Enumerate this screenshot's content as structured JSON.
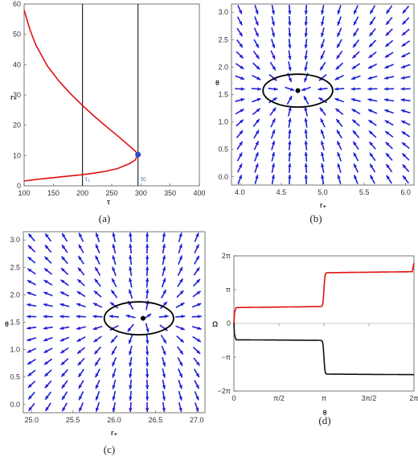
{
  "chart_data": [
    {
      "id": "a",
      "caption": "(a)",
      "type": "line",
      "xlabel": "τ",
      "ylabel": "r₊",
      "xlim": [
        100,
        400
      ],
      "ylim": [
        0,
        60
      ],
      "xticks": [
        100,
        150,
        200,
        250,
        300,
        350,
        400
      ],
      "yticks": [
        0,
        10,
        20,
        30,
        40,
        50,
        60
      ],
      "vlines": [
        {
          "x": 200,
          "label": "τ₁"
        },
        {
          "x": 295,
          "label": "τc"
        }
      ],
      "critical_point": {
        "x": 295,
        "y": 10.3
      },
      "series": [
        {
          "color": "#e01010",
          "points": [
            [
              100,
              58
            ],
            [
              110,
              51.5
            ],
            [
              120,
              46.5
            ],
            [
              140,
              39.5
            ],
            [
              160,
              34.5
            ],
            [
              180,
              30.3
            ],
            [
              200,
              26.5
            ],
            [
              220,
              23
            ],
            [
              240,
              19.7
            ],
            [
              260,
              16.5
            ],
            [
              280,
              13.2
            ],
            [
              290,
              11.5
            ],
            [
              295,
              10.3
            ],
            [
              290,
              8.5
            ],
            [
              280,
              7.3
            ],
            [
              260,
              5.7
            ],
            [
              240,
              4.8
            ],
            [
              220,
              4.2
            ],
            [
              200,
              3.7
            ],
            [
              180,
              3.3
            ],
            [
              160,
              2.9
            ],
            [
              140,
              2.5
            ],
            [
              120,
              2.1
            ],
            [
              100,
              1.6
            ]
          ]
        }
      ]
    },
    {
      "id": "b",
      "caption": "(b)",
      "type": "vector_field",
      "xlabel": "r₊",
      "ylabel": "θ",
      "xlim": [
        3.9,
        6.1
      ],
      "ylim": [
        -0.15,
        3.15
      ],
      "xticks": [
        "4.0",
        "4.5",
        "5.0",
        "5.5",
        "6.0"
      ],
      "yticks": [
        "0.0",
        "0.5",
        "1.0",
        "1.5",
        "2.0",
        "2.5",
        "3.0"
      ],
      "zero_point": {
        "x": 4.7,
        "y": 1.571
      },
      "orientation": "sink",
      "contour": {
        "cx": 4.7,
        "cy": 1.571,
        "rx": 0.42,
        "ry": 0.3
      },
      "color": "#1f1fd6"
    },
    {
      "id": "c",
      "caption": "(c)",
      "type": "vector_field",
      "xlabel": "r₊",
      "ylabel": "θ",
      "xlim": [
        24.9,
        27.1
      ],
      "ylim": [
        -0.15,
        3.15
      ],
      "xticks": [
        "25.0",
        "25.5",
        "26.0",
        "26.5",
        "27.0"
      ],
      "yticks": [
        "0.0",
        "0.5",
        "1.0",
        "1.5",
        "2.0",
        "2.5",
        "3.0"
      ],
      "zero_point": {
        "x": 26.35,
        "y": 1.571
      },
      "orientation": "source",
      "contour": {
        "cx": 26.3,
        "cy": 1.571,
        "rx": 0.42,
        "ry": 0.3
      },
      "color": "#1f1fd6"
    },
    {
      "id": "d",
      "caption": "(d)",
      "type": "line",
      "xlabel": "θ",
      "ylabel": "Ω",
      "xlim": [
        0,
        6.2832
      ],
      "ylim": [
        -6.2832,
        6.2832
      ],
      "xticks": [
        "0",
        "π/2",
        "π",
        "3π/2",
        "2π"
      ],
      "yticks": [
        "2π",
        "π",
        "0",
        "−π",
        "−2π"
      ],
      "series": [
        {
          "color": "#e01010",
          "shape": "ascending"
        },
        {
          "color": "#111111",
          "shape": "descending"
        }
      ]
    }
  ]
}
